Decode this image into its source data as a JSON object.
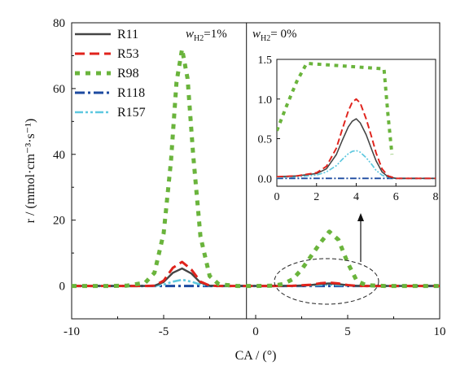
{
  "chart_data": {
    "type": "line",
    "xlabel": "CA / (°)",
    "ylabel": "r / (mmol·cm⁻³·s⁻¹)",
    "xlim": [
      -10,
      10
    ],
    "ylim": [
      -10,
      80
    ],
    "xticks": [
      "-10",
      "-5",
      "0",
      "5",
      "10"
    ],
    "yticks": [
      "0",
      "20",
      "40",
      "60",
      "80"
    ],
    "divider_x": -0.5,
    "annotations": [
      {
        "text": "w_H2=1%",
        "main": "w",
        "sub": "H2",
        "tail": "=1%"
      },
      {
        "text": "w_H2= 0%",
        "main": "w",
        "sub": "H2",
        "tail": "= 0%"
      }
    ],
    "legend_position": "top-left",
    "series": [
      {
        "name": "R11",
        "color": "#444444",
        "style": "solid",
        "x": [
          -10,
          -8,
          -6,
          -5.5,
          -5,
          -4.5,
          -4,
          -3.5,
          -3,
          -2.5,
          -2,
          0,
          1,
          2,
          3,
          3.5,
          4,
          4.5,
          5,
          5.5,
          6,
          8,
          10
        ],
        "y": [
          0,
          0,
          0,
          0.1,
          1.2,
          4.0,
          5.3,
          3.8,
          1.0,
          0.1,
          0,
          0,
          0,
          0.02,
          0.25,
          0.6,
          0.75,
          0.55,
          0.2,
          0.03,
          0,
          0,
          0
        ]
      },
      {
        "name": "R53",
        "color": "#e0231c",
        "style": "dashed",
        "x": [
          -10,
          -8,
          -6,
          -5.5,
          -5,
          -4.5,
          -4,
          -3.5,
          -3,
          -2.5,
          -2,
          0,
          1,
          2,
          3,
          3.5,
          4,
          4.5,
          5,
          5.5,
          6,
          8,
          10
        ],
        "y": [
          0,
          0,
          0,
          0.1,
          1.6,
          5.5,
          7.3,
          5.0,
          1.3,
          0.1,
          0,
          0,
          0,
          0.03,
          0.35,
          0.8,
          1.0,
          0.75,
          0.25,
          0.04,
          0,
          0,
          0
        ]
      },
      {
        "name": "R98",
        "color": "#6ab43c",
        "style": "dotted",
        "x": [
          -10,
          -8,
          -7,
          -6,
          -5.5,
          -5,
          -4.6,
          -4.3,
          -4,
          -3.7,
          -3.4,
          -3,
          -2.5,
          -2,
          -1,
          0,
          1,
          1.5,
          2,
          2.5,
          3,
          3.5,
          4,
          4.5,
          5,
          5.5,
          6,
          7,
          8,
          10
        ],
        "y": [
          0,
          0,
          0.1,
          1,
          4,
          16,
          38,
          62,
          72,
          63,
          40,
          15,
          3,
          0.5,
          0,
          0,
          0.1,
          0.6,
          2,
          5,
          9,
          13,
          16.5,
          14,
          7,
          1.5,
          0.2,
          0,
          0,
          0
        ]
      },
      {
        "name": "R118",
        "color": "#1c4aa0",
        "style": "dashdot",
        "x": [
          -10,
          -5,
          0,
          5,
          10
        ],
        "y": [
          0,
          0,
          0,
          0,
          0
        ]
      },
      {
        "name": "R157",
        "color": "#5ec8df",
        "style": "dashdotdot",
        "x": [
          -10,
          -8,
          -6,
          -5.5,
          -5,
          -4.5,
          -4,
          -3.5,
          -3,
          -2.5,
          -2,
          0,
          1,
          2,
          3,
          3.5,
          4,
          4.5,
          5,
          5.5,
          6,
          8,
          10
        ],
        "y": [
          0,
          0,
          0,
          0,
          0.4,
          1.3,
          1.9,
          1.3,
          0.4,
          0.05,
          0,
          0,
          0,
          0.01,
          0.12,
          0.28,
          0.35,
          0.26,
          0.1,
          0.01,
          0,
          0,
          0
        ]
      }
    ],
    "inset": {
      "xlim": [
        0,
        8
      ],
      "ylim": [
        -0.1,
        1.5
      ],
      "xticks": [
        "0",
        "2",
        "4",
        "6",
        "8"
      ],
      "yticks": [
        "0.0",
        "0.5",
        "1.0",
        "1.5"
      ],
      "series": [
        {
          "name": "R11",
          "x": [
            0,
            1,
            2,
            2.5,
            3,
            3.3,
            3.6,
            3.8,
            4,
            4.2,
            4.5,
            4.8,
            5,
            5.3,
            5.6,
            6,
            7,
            8
          ],
          "y": [
            0.02,
            0.03,
            0.06,
            0.12,
            0.3,
            0.48,
            0.65,
            0.72,
            0.75,
            0.7,
            0.55,
            0.35,
            0.22,
            0.08,
            0.02,
            0,
            0,
            0
          ]
        },
        {
          "name": "R53",
          "x": [
            0,
            1,
            2,
            2.5,
            3,
            3.3,
            3.6,
            3.8,
            4,
            4.2,
            4.5,
            4.8,
            5,
            5.3,
            5.6,
            6,
            7,
            8
          ],
          "y": [
            0.02,
            0.03,
            0.07,
            0.15,
            0.38,
            0.62,
            0.85,
            0.96,
            1.0,
            0.95,
            0.75,
            0.5,
            0.32,
            0.12,
            0.03,
            0,
            0,
            0
          ]
        },
        {
          "name": "R98",
          "x": [
            0,
            0.5,
            1,
            1.5,
            5.4,
            5.6,
            5.8
          ],
          "y": [
            0.6,
            0.92,
            1.22,
            1.45,
            1.38,
            0.8,
            0.3
          ]
        },
        {
          "name": "R118",
          "x": [
            0,
            8
          ],
          "y": [
            0,
            0
          ]
        },
        {
          "name": "R157",
          "x": [
            0,
            1,
            2,
            2.5,
            3,
            3.3,
            3.6,
            3.8,
            4,
            4.2,
            4.5,
            4.8,
            5,
            5.3,
            5.6,
            6,
            7,
            8
          ],
          "y": [
            0.01,
            0.02,
            0.04,
            0.08,
            0.16,
            0.24,
            0.31,
            0.34,
            0.35,
            0.33,
            0.26,
            0.17,
            0.1,
            0.04,
            0.01,
            0,
            0,
            0
          ]
        }
      ]
    }
  }
}
